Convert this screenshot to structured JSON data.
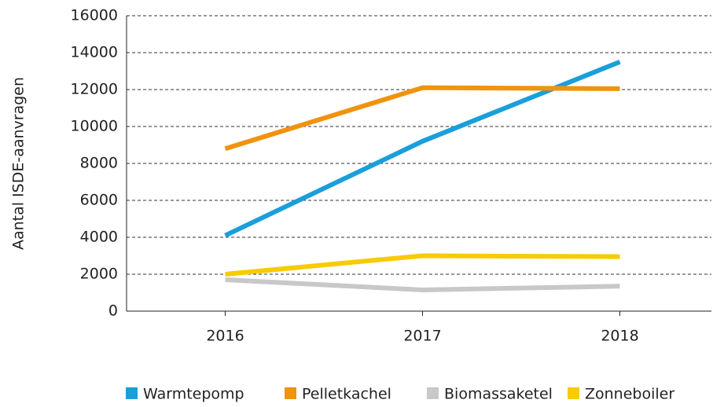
{
  "chart_data": {
    "type": "line",
    "y_label": "Aantal ISDE-aanvragen",
    "categories": [
      "2016",
      "2017",
      "2018"
    ],
    "series": [
      {
        "name": "Warmtepomp",
        "color": "#1a9fdb",
        "values": [
          4100,
          9200,
          13500
        ]
      },
      {
        "name": "Pelletkachel",
        "color": "#f0930f",
        "values": [
          8800,
          12100,
          12050
        ]
      },
      {
        "name": "Biomassaketel",
        "color": "#c8c8c8",
        "values": [
          1700,
          1150,
          1350
        ]
      },
      {
        "name": "Zonneboiler",
        "color": "#f7cb06",
        "values": [
          2000,
          3000,
          2950
        ]
      }
    ],
    "ylim": [
      0,
      16000
    ],
    "yticks": [
      0,
      2000,
      4000,
      6000,
      8000,
      10000,
      12000,
      14000,
      16000
    ],
    "grid": true,
    "legend": "bottom"
  }
}
